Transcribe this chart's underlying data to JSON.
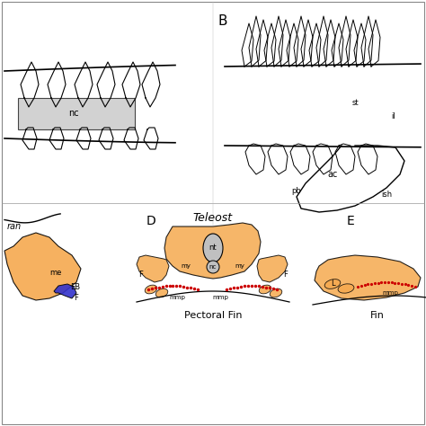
{
  "title_B": "B",
  "label_nc": "nc",
  "label_st": "st",
  "label_il": "il",
  "label_ac": "ac",
  "label_pb": "pb",
  "label_ish": "ish",
  "label_D": "D",
  "label_E": "E",
  "label_teleost": "Teleost",
  "label_nt": "nt",
  "label_nc2": "nc",
  "label_my_left": "my",
  "label_my_right": "my",
  "label_mmp_left": "mmp",
  "label_mmp_right": "mmp",
  "label_F_left": "F",
  "label_F_right": "F",
  "label_pectoral": "Pectoral Fin",
  "label_ran": "ran",
  "label_me": "me",
  "label_EB": "EB",
  "label_F_c": "F",
  "label_mmp_e": "mmp",
  "label_L": "L",
  "label_E_fin": "Fin",
  "bg_color": "#ffffff",
  "gray_color": "#c0c0c0",
  "orange_color": "#f5a94f",
  "blue_color": "#3333cc",
  "red_dot_color": "#cc0000",
  "black": "#000000",
  "border_color": "#888888"
}
